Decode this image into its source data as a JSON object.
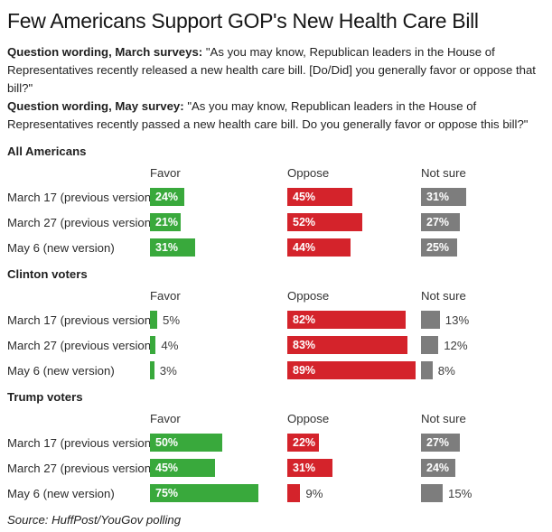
{
  "title": "Few Americans Support GOP's New Health Care Bill",
  "questions": [
    {
      "lead": "Question wording, March surveys:",
      "text": " \"As you may know, Republican leaders in the House of Representatives recently released a new health care bill. [Do/Did] you generally favor or oppose that bill?\""
    },
    {
      "lead": "Question wording, May survey:",
      "text": " \"As you may know, Republican leaders in the House of Representatives recently passed a new health care bill. Do you generally favor or oppose this bill?\""
    }
  ],
  "source": "Source: HuffPost/YouGov polling",
  "chart_data": {
    "type": "bar",
    "orientation": "horizontal",
    "unit": "%",
    "measures": [
      "Favor",
      "Oppose",
      "Not sure"
    ],
    "xlim": [
      0,
      95
    ],
    "label_inside_threshold": 20,
    "colors": {
      "favor": "#39a93c",
      "oppose": "#d4232b",
      "not_sure": "#7d7d7d"
    },
    "groups": [
      {
        "name": "All Americans",
        "rows": [
          {
            "label": "March 17 (previous version)",
            "favor": 24,
            "oppose": 45,
            "not_sure": 31
          },
          {
            "label": "March 27 (previous version)",
            "favor": 21,
            "oppose": 52,
            "not_sure": 27
          },
          {
            "label": "May 6 (new version)",
            "favor": 31,
            "oppose": 44,
            "not_sure": 25
          }
        ]
      },
      {
        "name": "Clinton voters",
        "rows": [
          {
            "label": "March 17 (previous version)",
            "favor": 5,
            "oppose": 82,
            "not_sure": 13
          },
          {
            "label": "March 27 (previous version)",
            "favor": 4,
            "oppose": 83,
            "not_sure": 12
          },
          {
            "label": "May 6 (new version)",
            "favor": 3,
            "oppose": 89,
            "not_sure": 8
          }
        ]
      },
      {
        "name": "Trump voters",
        "rows": [
          {
            "label": "March 17 (previous version)",
            "favor": 50,
            "oppose": 22,
            "not_sure": 27
          },
          {
            "label": "March 27 (previous version)",
            "favor": 45,
            "oppose": 31,
            "not_sure": 24
          },
          {
            "label": "May 6 (new version)",
            "favor": 75,
            "oppose": 9,
            "not_sure": 15
          }
        ]
      }
    ]
  }
}
